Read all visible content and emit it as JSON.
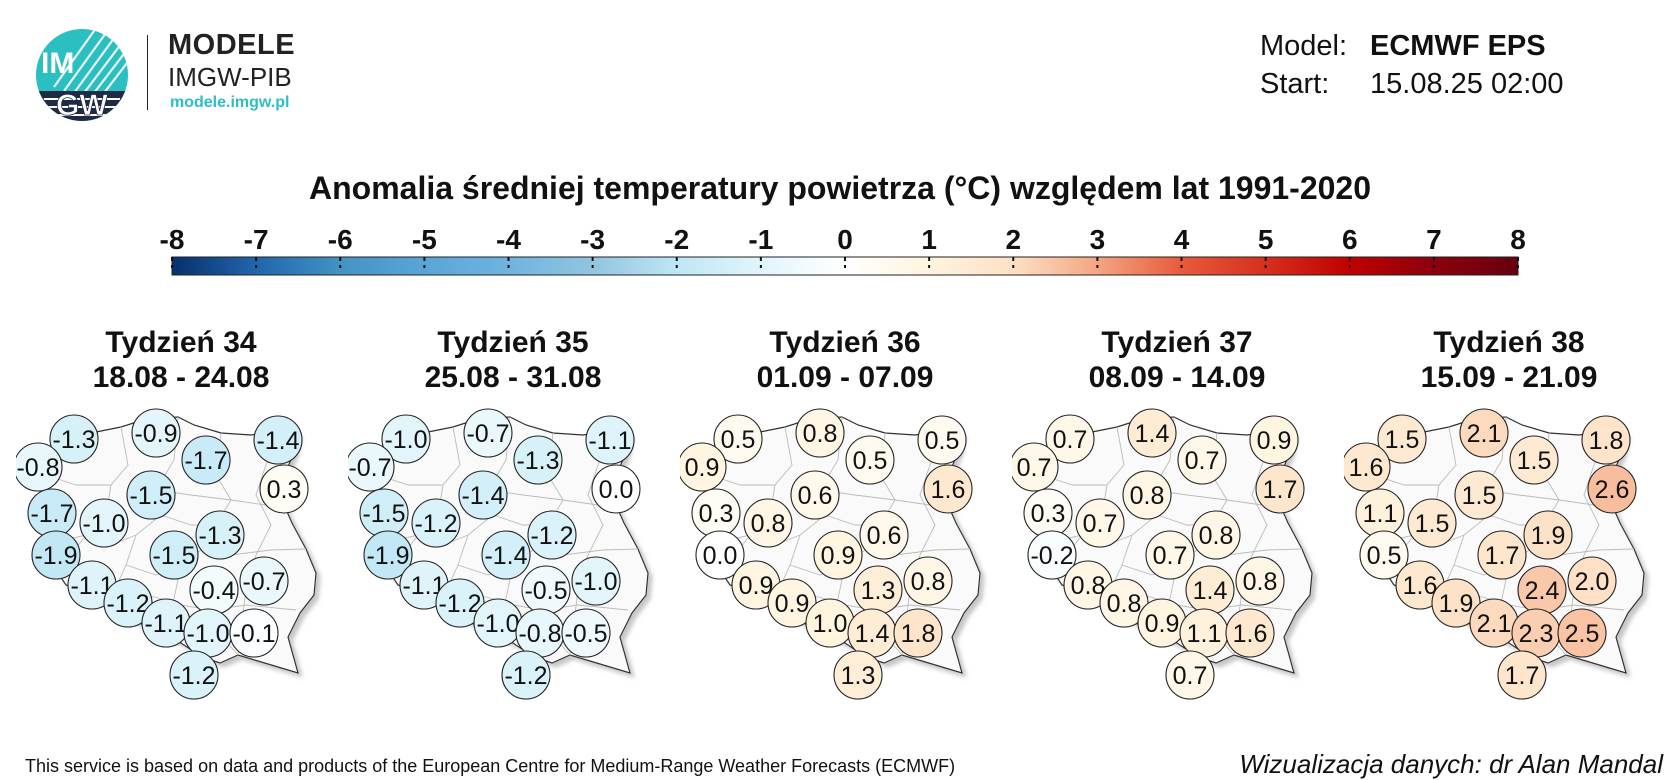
{
  "logo": {
    "brand_line1": "MODELE",
    "brand_line2": "IMGW-PIB",
    "url": "modele.imgw.pl",
    "mark_text_top": "IM",
    "mark_text_bottom": "GW",
    "colors": {
      "teal": "#2bbfc2",
      "navy": "#1f2a44"
    }
  },
  "meta": {
    "model_label": "Model:",
    "model_value": "ECMWF EPS",
    "start_label": "Start:",
    "start_value": "15.08.25 02:00"
  },
  "title": "Anomalia średniej temperatury powietrza (°C) względem lat 1991-2020",
  "colorbar": {
    "ticks": [
      "-8",
      "-7",
      "-6",
      "-5",
      "-4",
      "-3",
      "-2",
      "-1",
      "0",
      "1",
      "2",
      "3",
      "4",
      "5",
      "6",
      "7",
      "8"
    ],
    "min": -8,
    "max": 8,
    "colors": [
      "#08306b",
      "#2166ac",
      "#4393c3",
      "#6bb0dc",
      "#92c5de",
      "#bfe6f5",
      "#e0f5fb",
      "#fff4e0",
      "#fde0c5",
      "#f4a582",
      "#e85a3a",
      "#d6301e",
      "#c00000",
      "#67000d"
    ]
  },
  "weeks": [
    {
      "title": "Tydzień 34",
      "dates": "18.08 - 24.08"
    },
    {
      "title": "Tydzień 35",
      "dates": "25.08 - 31.08"
    },
    {
      "title": "Tydzień 36",
      "dates": "01.09 - 07.09"
    },
    {
      "title": "Tydzień 37",
      "dates": "08.09 - 14.09"
    },
    {
      "title": "Tydzień 38",
      "dates": "15.09 - 21.09"
    }
  ],
  "station_values": [
    [
      "-1.3",
      "-0.9",
      "-1.7",
      "-1.4",
      "-0.8",
      "0.3",
      "-1.5",
      "-1.7",
      "-1.0",
      "-1.3",
      "-1.9",
      "-1.5",
      "-0.7",
      "-1.1",
      "-0.4",
      "-1.2",
      "-1.1",
      "-1.0",
      "-0.1",
      "-1.2"
    ],
    [
      "-1.0",
      "-0.7",
      "-1.3",
      "-1.1",
      "-0.7",
      "0.0",
      "-1.4",
      "-1.5",
      "-1.2",
      "-1.2",
      "-1.9",
      "-1.4",
      "-1.0",
      "-1.1",
      "-0.5",
      "-1.2",
      "-1.0",
      "-0.8",
      "-0.5",
      "-1.2"
    ],
    [
      "0.5",
      "0.8",
      "0.5",
      "0.5",
      "0.9",
      "1.6",
      "0.6",
      "0.3",
      "0.8",
      "0.6",
      "0.0",
      "0.9",
      "0.8",
      "0.9",
      "1.3",
      "0.9",
      "1.0",
      "1.4",
      "1.8",
      "1.3"
    ],
    [
      "0.7",
      "1.4",
      "0.7",
      "0.9",
      "0.7",
      "1.7",
      "0.8",
      "0.3",
      "0.7",
      "0.8",
      "-0.2",
      "0.7",
      "0.8",
      "0.8",
      "1.4",
      "0.8",
      "0.9",
      "1.1",
      "1.6",
      "0.7"
    ],
    [
      "1.5",
      "2.1",
      "1.5",
      "1.8",
      "1.6",
      "2.6",
      "1.5",
      "1.1",
      "1.5",
      "1.9",
      "0.5",
      "1.7",
      "2.0",
      "1.6",
      "2.4",
      "1.9",
      "2.1",
      "2.3",
      "2.5",
      "1.7"
    ]
  ],
  "footer": {
    "source": "This service is based on data and products of the European Centre for Medium-Range Weather Forecasts (ECMWF)",
    "credit": "Wizualizacja danych: dr Alan Mandal"
  }
}
